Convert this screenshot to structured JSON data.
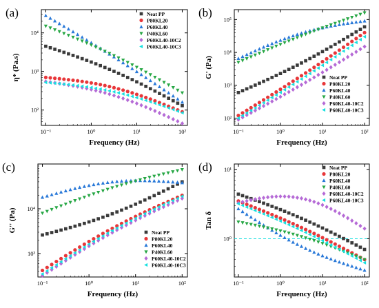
{
  "figure": {
    "colors": {
      "Neat PP": "#3a3a3a",
      "P80KL20": "#e8373a",
      "P60KL40": "#2878d8",
      "P40KL60": "#27a745",
      "P60KL40-10C2": "#b56ad6",
      "P60KL40-10C3": "#17e0e0"
    },
    "markers": {
      "Neat PP": "square",
      "P80KL20": "circle",
      "P60KL40": "triangle-up",
      "P40KL60": "triangle-down",
      "P60KL40-10C2": "diamond",
      "P60KL40-10C3": "triangle-left"
    }
  },
  "chart_data": [
    {
      "panel": "(a)",
      "type": "scatter",
      "x_scale": "log",
      "y_scale": "log",
      "xlabel": "Frequency (Hz)",
      "ylabel": "η* (Pa.s)",
      "xlim": [
        0.08,
        130
      ],
      "ylim": [
        40,
        40000
      ],
      "x_ticks": [
        0.1,
        1,
        10,
        100
      ],
      "x_tick_labels": [
        "10⁻¹",
        "10⁰",
        "10¹",
        "10²"
      ],
      "y_ticks": [
        100,
        1000,
        10000
      ],
      "y_tick_labels": [
        "10²",
        "10³",
        "10⁴"
      ],
      "legend_position": "top-right",
      "series": [
        {
          "name": "Neat PP",
          "log_endpoints": [
            [
              0.1,
              4500
            ],
            [
              100,
              130
            ]
          ]
        },
        {
          "name": "P80KL20",
          "log_endpoints": [
            [
              0.1,
              700
            ],
            [
              100,
              90
            ]
          ]
        },
        {
          "name": "P60KL40",
          "log_endpoints": [
            [
              0.1,
              28000
            ],
            [
              100,
              160
            ]
          ]
        },
        {
          "name": "P40KL60",
          "log_endpoints": [
            [
              0.1,
              15000
            ],
            [
              100,
              280
            ]
          ]
        },
        {
          "name": "P60KL40-10C2",
          "log_endpoints": [
            [
              0.1,
              550
            ],
            [
              100,
              45
            ]
          ]
        },
        {
          "name": "P60KL40-10C3",
          "log_endpoints": [
            [
              0.1,
              520
            ],
            [
              100,
              85
            ]
          ]
        }
      ]
    },
    {
      "panel": "(b)",
      "type": "scatter",
      "x_scale": "log",
      "y_scale": "log",
      "xlabel": "Frequency (Hz)",
      "ylabel": "G' (Pa)",
      "xlim": [
        0.08,
        130
      ],
      "ylim": [
        60,
        200000
      ],
      "x_ticks": [
        0.1,
        1,
        10,
        100
      ],
      "x_tick_labels": [
        "10⁻¹",
        "10⁰",
        "10¹",
        "10²"
      ],
      "y_ticks": [
        100,
        1000,
        10000,
        100000
      ],
      "y_tick_labels": [
        "10²",
        "10³",
        "10⁴",
        "10⁵"
      ],
      "legend_position": "bottom-right",
      "series": [
        {
          "name": "Neat PP",
          "log_endpoints": [
            [
              0.1,
              600
            ],
            [
              100,
              60000
            ]
          ]
        },
        {
          "name": "P80KL20",
          "log_endpoints": [
            [
              0.1,
              120
            ],
            [
              100,
              40000
            ]
          ]
        },
        {
          "name": "P60KL40",
          "log_endpoints": [
            [
              0.1,
              6500
            ],
            [
              100,
              90000
            ]
          ]
        },
        {
          "name": "P40KL60",
          "log_endpoints": [
            [
              0.1,
              5000
            ],
            [
              100,
              160000
            ]
          ]
        },
        {
          "name": "P60KL40-10C2",
          "log_endpoints": [
            [
              0.1,
              90
            ],
            [
              100,
              15000
            ]
          ]
        },
        {
          "name": "P60KL40-10C3",
          "log_endpoints": [
            [
              0.1,
              100
            ],
            [
              100,
              30000
            ]
          ]
        }
      ]
    },
    {
      "panel": "(c)",
      "type": "scatter",
      "x_scale": "log",
      "y_scale": "log",
      "xlabel": "Frequency (Hz)",
      "ylabel": "G'' (Pa)",
      "xlim": [
        0.08,
        130
      ],
      "ylim": [
        300,
        100000
      ],
      "x_ticks": [
        0.1,
        1,
        10,
        100
      ],
      "x_tick_labels": [
        "10⁻¹",
        "10⁰",
        "10¹",
        "10²"
      ],
      "y_ticks": [
        1000,
        10000
      ],
      "y_tick_labels": [
        "10³",
        "10⁴"
      ],
      "legend_position": "bottom-right",
      "series": [
        {
          "name": "Neat PP",
          "log_endpoints": [
            [
              0.1,
              2600
            ],
            [
              100,
              40000
            ]
          ]
        },
        {
          "name": "P80KL20",
          "log_endpoints": [
            [
              0.1,
              420
            ],
            [
              100,
              20000
            ]
          ]
        },
        {
          "name": "P60KL40",
          "log_endpoints": [
            [
              0.1,
              18000
            ],
            [
              100,
              38000
            ]
          ]
        },
        {
          "name": "P40KL60",
          "log_endpoints": [
            [
              0.1,
              8000
            ],
            [
              100,
              75000
            ]
          ]
        },
        {
          "name": "P60KL40-10C2",
          "log_endpoints": [
            [
              0.1,
              320
            ],
            [
              100,
              17000
            ]
          ]
        },
        {
          "name": "P60KL40-10C3",
          "log_endpoints": [
            [
              0.1,
              350
            ],
            [
              100,
              19000
            ]
          ]
        }
      ]
    },
    {
      "panel": "(d)",
      "type": "scatter",
      "x_scale": "log",
      "y_scale": "log",
      "xlabel": "Frequency (Hz)",
      "ylabel": "Tan δ",
      "xlim": [
        0.08,
        130
      ],
      "ylim": [
        0.28,
        12
      ],
      "x_ticks": [
        0.1,
        1,
        10,
        100
      ],
      "x_tick_labels": [
        "10⁻¹",
        "10⁰",
        "10¹",
        "10²"
      ],
      "y_ticks": [
        1,
        10
      ],
      "y_tick_labels": [
        "10⁰",
        "10¹"
      ],
      "reference_line": {
        "y": 1,
        "style": "dashed",
        "color": "#17e0e0"
      },
      "legend_position": "top-right",
      "series": [
        {
          "name": "Neat PP",
          "log_endpoints": [
            [
              0.1,
              4.4
            ],
            [
              100,
              0.7
            ]
          ]
        },
        {
          "name": "P80KL20",
          "log_endpoints": [
            [
              0.1,
              3.5
            ],
            [
              100,
              0.5
            ]
          ]
        },
        {
          "name": "P60KL40",
          "log_endpoints": [
            [
              0.1,
              2.7
            ],
            [
              100,
              0.35
            ]
          ]
        },
        {
          "name": "P40KL60",
          "log_endpoints": [
            [
              0.1,
              1.75
            ],
            [
              100,
              0.5
            ]
          ]
        },
        {
          "name": "P60KL40-10C2",
          "log_endpoints": [
            [
              0.1,
              3.3
            ],
            [
              100,
              1.4
            ]
          ]
        },
        {
          "name": "P60KL40-10C3",
          "log_endpoints": [
            [
              0.1,
              3.2
            ],
            [
              100,
              0.45
            ]
          ]
        }
      ]
    }
  ]
}
